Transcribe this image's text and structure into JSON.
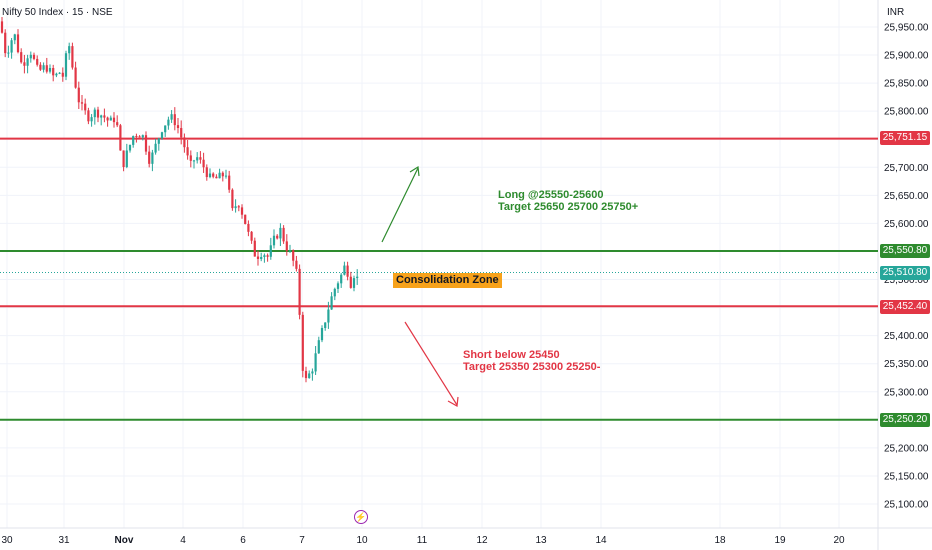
{
  "header": {
    "title": "Nifty 50 Index · 15 · NSE",
    "currency": "INR"
  },
  "annotations": {
    "long": {
      "line1": "Long @25550-25600",
      "line2": "Target 25650 25700 25750+"
    },
    "short": {
      "line1": "Short below 25450",
      "line2": "Target 25350 25300 25250-"
    },
    "zone_label": "Consolidation Zone"
  },
  "price_tags": {
    "resistance_top": "25,751.15",
    "resistance_upper": "25,550.80",
    "last_price": "25,510.80",
    "support_upper": "25,452.40",
    "support_lower": "25,250.20"
  },
  "colors": {
    "red_level": "#e23645",
    "green_level": "#2e8b2e",
    "bull_candle": "#26a69a",
    "bear_candle": "#e23645",
    "last_price": "#26a69a",
    "zone_bg": "#f7a21b",
    "grid": "#f0f3fa"
  },
  "chart_data": {
    "type": "candlestick",
    "y_range": [
      25075,
      25975
    ],
    "y_ticks": [
      25100,
      25150,
      25200,
      25250,
      25300,
      25350,
      25400,
      25450,
      25500,
      25550,
      25600,
      25650,
      25700,
      25750,
      25800,
      25850,
      25900,
      25950
    ],
    "y_tick_labels": [
      "25,100.00",
      "25,150.00",
      "25,200.00",
      "25,250.00",
      "25,300.00",
      "25,350.00",
      "25,400.00",
      "25,450.00",
      "25,500.00",
      "25,550.00",
      "25,600.00",
      "25,650.00",
      "25,700.00",
      "25,750.00",
      "25,800.00",
      "25,850.00",
      "25,900.00",
      "25,950.00"
    ],
    "x_labels": [
      "30",
      "31",
      "Nov",
      "4",
      "6",
      "7",
      "10",
      "11",
      "12",
      "13",
      "14",
      "18",
      "19",
      "20"
    ],
    "levels": [
      {
        "price": 25751.15,
        "color": "red"
      },
      {
        "price": 25550.8,
        "color": "green"
      },
      {
        "price": 25452.4,
        "color": "red"
      },
      {
        "price": 25250.2,
        "color": "green"
      }
    ],
    "last_price": 25510.8,
    "candle_path": [
      [
        0,
        25960
      ],
      [
        6,
        25900
      ],
      [
        14,
        25940
      ],
      [
        22,
        25880
      ],
      [
        30,
        25910
      ],
      [
        38,
        25870
      ],
      [
        46,
        25880
      ],
      [
        54,
        25860
      ],
      [
        60,
        25870
      ],
      [
        64,
        25860
      ],
      [
        68,
        25930
      ],
      [
        74,
        25860
      ],
      [
        80,
        25810
      ],
      [
        88,
        25790
      ],
      [
        96,
        25800
      ],
      [
        104,
        25790
      ],
      [
        110,
        25780
      ],
      [
        116,
        25790
      ],
      [
        122,
        25700
      ],
      [
        128,
        25730
      ],
      [
        134,
        25760
      ],
      [
        142,
        25760
      ],
      [
        150,
        25710
      ],
      [
        156,
        25740
      ],
      [
        162,
        25770
      ],
      [
        170,
        25790
      ],
      [
        176,
        25780
      ],
      [
        184,
        25740
      ],
      [
        190,
        25700
      ],
      [
        196,
        25720
      ],
      [
        204,
        25700
      ],
      [
        210,
        25680
      ],
      [
        218,
        25680
      ],
      [
        226,
        25690
      ],
      [
        232,
        25620
      ],
      [
        238,
        25640
      ],
      [
        244,
        25610
      ],
      [
        250,
        25570
      ],
      [
        256,
        25540
      ],
      [
        262,
        25550
      ],
      [
        268,
        25540
      ],
      [
        274,
        25570
      ],
      [
        280,
        25590
      ],
      [
        286,
        25560
      ],
      [
        292,
        25540
      ],
      [
        298,
        25500
      ],
      [
        302,
        25350
      ],
      [
        306,
        25320
      ],
      [
        312,
        25340
      ],
      [
        318,
        25380
      ],
      [
        324,
        25420
      ],
      [
        330,
        25460
      ],
      [
        336,
        25490
      ],
      [
        342,
        25510
      ],
      [
        346,
        25530
      ],
      [
        350,
        25490
      ],
      [
        354,
        25510
      ],
      [
        358,
        25500
      ]
    ]
  }
}
